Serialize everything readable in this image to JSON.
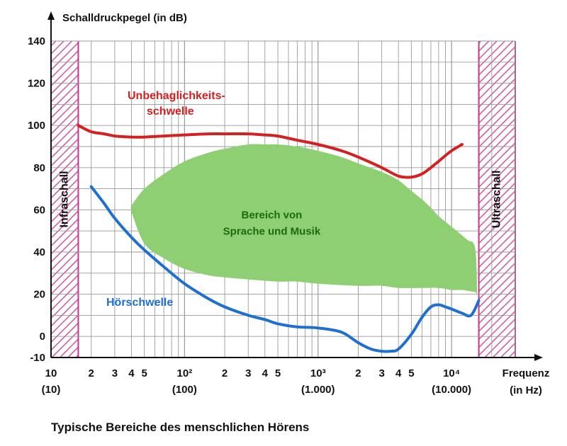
{
  "chart_data": {
    "type": "line",
    "ylabel": "Schalldruckpegel (in dB)",
    "xlabel": "Frequenz",
    "xlabel_unit": "(in Hz)",
    "x_scale": "log",
    "xlim": [
      10,
      30000
    ],
    "ylim": [
      -10,
      140
    ],
    "y_ticks": [
      140,
      120,
      100,
      80,
      60,
      40,
      20,
      0,
      -10
    ],
    "grid": true,
    "x_major_ticks": [
      {
        "value": 10,
        "label": "10",
        "sublabel": "(10)"
      },
      {
        "value": 100,
        "label": "10²",
        "sublabel": "(100)"
      },
      {
        "value": 1000,
        "label": "10³",
        "sublabel": "(1.000)"
      },
      {
        "value": 10000,
        "label": "10⁴",
        "sublabel": "(10.000)"
      }
    ],
    "x_minor_ticks": [
      {
        "value": 20,
        "label": "2"
      },
      {
        "value": 30,
        "label": "3"
      },
      {
        "value": 40,
        "label": "4"
      },
      {
        "value": 50,
        "label": "5"
      },
      {
        "value": 200,
        "label": "2"
      },
      {
        "value": 300,
        "label": "3"
      },
      {
        "value": 400,
        "label": "4"
      },
      {
        "value": 500,
        "label": "5"
      },
      {
        "value": 2000,
        "label": "2"
      },
      {
        "value": 3000,
        "label": "3"
      },
      {
        "value": 4000,
        "label": "4"
      },
      {
        "value": 5000,
        "label": "5"
      }
    ],
    "bands": [
      {
        "label": "Infraschall",
        "from": 10,
        "to": 16
      },
      {
        "label": "Ultraschall",
        "from": 16000,
        "to": 30000
      }
    ],
    "series": [
      {
        "name": "Unbehaglichkeits-schwelle",
        "label_lines": [
          "Unbehaglichkeits-",
          "schwelle"
        ],
        "color": "#d42020",
        "x": [
          16,
          20,
          25,
          30,
          40,
          50,
          70,
          100,
          150,
          200,
          300,
          400,
          500,
          700,
          1000,
          1500,
          2000,
          3000,
          4000,
          5000,
          6000,
          7000,
          8000,
          10000,
          12000
        ],
        "y": [
          100,
          97,
          96,
          95,
          94.5,
          94.5,
          95,
          95.5,
          96,
          96,
          96,
          95.5,
          95,
          93,
          91,
          88,
          85,
          80,
          76,
          75.5,
          77,
          80,
          83,
          88,
          91
        ]
      },
      {
        "name": "Hörschwelle",
        "label_lines": [
          "Hörschwelle"
        ],
        "color": "#1f6fd0",
        "x": [
          20,
          25,
          30,
          40,
          50,
          70,
          100,
          150,
          200,
          300,
          400,
          500,
          700,
          1000,
          1500,
          2000,
          2500,
          3000,
          3500,
          4000,
          5000,
          6000,
          7000,
          8000,
          9000,
          10000,
          12000,
          14000,
          16000
        ],
        "y": [
          71,
          63,
          56,
          47,
          41,
          33,
          25,
          18,
          14,
          10,
          8,
          6,
          4.5,
          4,
          2,
          -3,
          -6,
          -7,
          -7,
          -6,
          1,
          9,
          14,
          15,
          14,
          13,
          11,
          10,
          17
        ]
      }
    ],
    "region": {
      "label_lines": [
        "Bereich von",
        "Sprache und Musik"
      ],
      "color": "#8fcf73",
      "x": [
        40,
        50,
        70,
        100,
        150,
        200,
        300,
        400,
        500,
        700,
        1000,
        1500,
        2000,
        3000,
        4000,
        5000,
        6000,
        7000,
        8000,
        10000,
        13000,
        15000,
        15500,
        15000,
        12000,
        10000,
        8000,
        6000,
        4000,
        3000,
        2000,
        1000,
        700,
        500,
        300,
        200,
        150,
        100,
        70,
        50,
        40
      ],
      "y": [
        62,
        70,
        77,
        83,
        87,
        89,
        91,
        91,
        91,
        90,
        88,
        85,
        82,
        78,
        74,
        69,
        65,
        61,
        57,
        52,
        46,
        42,
        21,
        21,
        22,
        22,
        23,
        23,
        23,
        24,
        24,
        25,
        26,
        26,
        27,
        28,
        29,
        32,
        37,
        44,
        59
      ]
    },
    "caption": "Typische Bereiche des menschlichen Hörens"
  }
}
